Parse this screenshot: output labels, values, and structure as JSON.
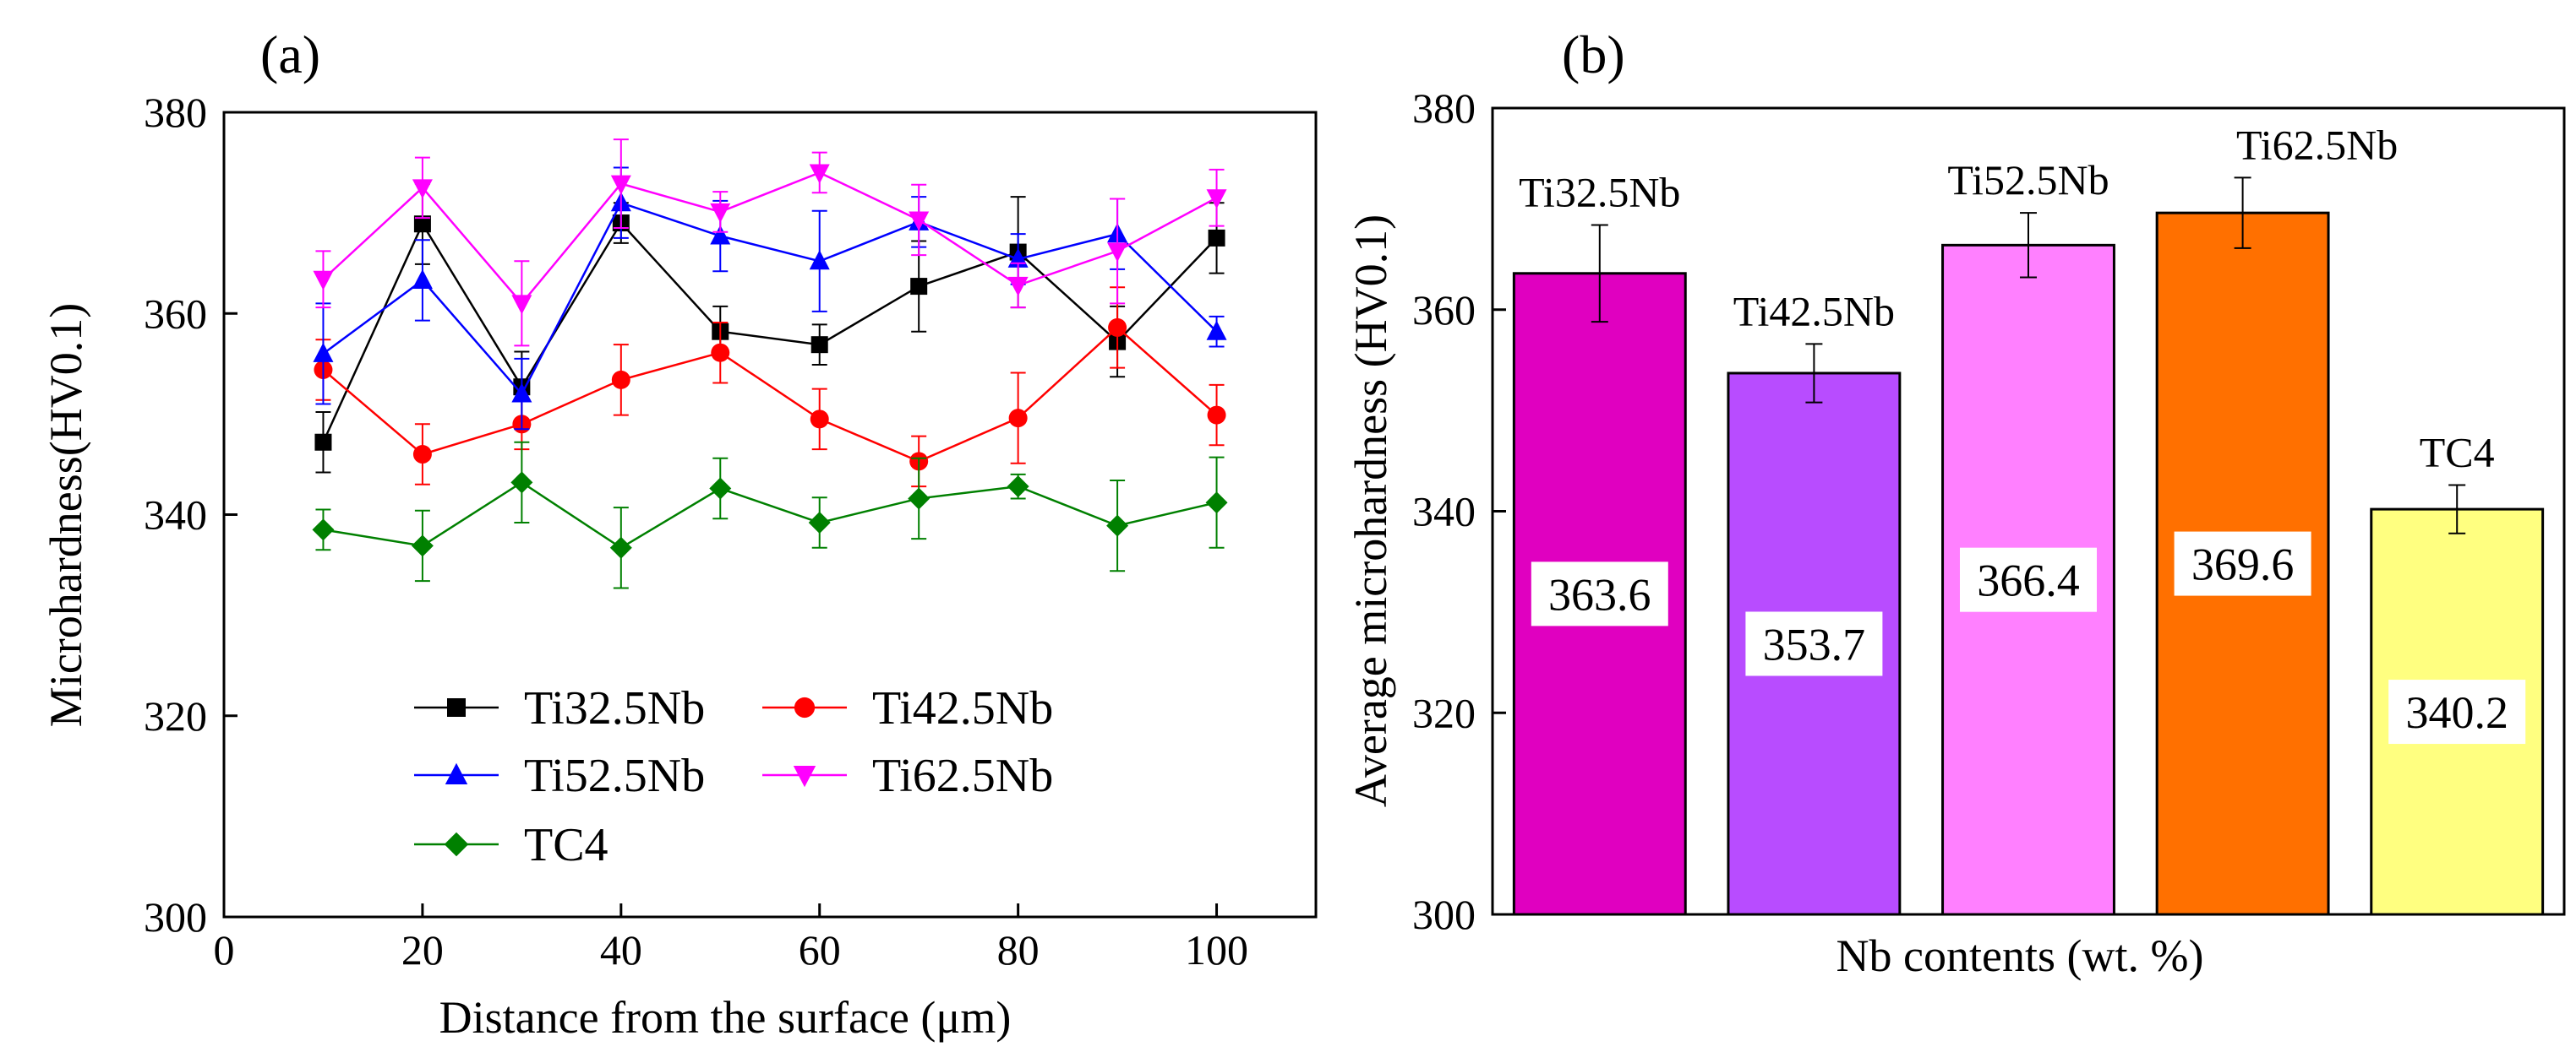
{
  "chart_data": [
    {
      "panel": "(a)",
      "type": "line",
      "xlabel": "Distance from the surface (μm)",
      "ylabel": "Microhardness(HV0.1)",
      "xlim": [
        0,
        110
      ],
      "ylim": [
        300,
        380
      ],
      "xticks": [
        0,
        20,
        40,
        60,
        80,
        100
      ],
      "yticks": [
        300,
        320,
        340,
        360,
        380
      ],
      "x": [
        10,
        20,
        30,
        40,
        50,
        60,
        70,
        80,
        90,
        100
      ],
      "legend_position": "bottom-left",
      "series": [
        {
          "name": "Ti32.5Nb",
          "color": "#000000",
          "marker": "square",
          "values": [
            347.2,
            368.9,
            352.7,
            369.0,
            358.2,
            356.9,
            362.7,
            366.1,
            357.2,
            367.5
          ],
          "errors": [
            3.0,
            4.0,
            3.5,
            2.0,
            2.5,
            2.0,
            4.5,
            5.5,
            3.5,
            3.5
          ]
        },
        {
          "name": "Ti42.5Nb",
          "color": "#ff0000",
          "marker": "circle",
          "values": [
            354.4,
            346.0,
            349.0,
            353.4,
            356.1,
            349.5,
            345.3,
            349.6,
            358.6,
            349.9
          ],
          "errors": [
            3.0,
            3.0,
            2.5,
            3.5,
            3.0,
            3.0,
            2.5,
            4.5,
            4.0,
            3.0
          ]
        },
        {
          "name": "Ti52.5Nb",
          "color": "#0000ff",
          "marker": "triangle-up",
          "values": [
            356.0,
            363.3,
            352.0,
            371.0,
            367.7,
            365.2,
            369.1,
            365.4,
            367.9,
            358.2
          ],
          "errors": [
            5.0,
            4.0,
            3.5,
            3.5,
            3.5,
            5.0,
            2.5,
            2.5,
            3.5,
            1.5
          ]
        },
        {
          "name": "Ti62.5Nb",
          "color": "#ff00ff",
          "marker": "triangle-down",
          "values": [
            363.4,
            372.5,
            361.0,
            372.9,
            370.1,
            374.0,
            369.3,
            362.8,
            366.2,
            371.5
          ],
          "errors": [
            2.8,
            3.0,
            4.2,
            4.4,
            2.0,
            2.0,
            3.5,
            2.2,
            5.2,
            2.8
          ]
        },
        {
          "name": "TC4",
          "color": "#008000",
          "marker": "diamond",
          "values": [
            338.5,
            336.9,
            343.2,
            336.7,
            342.6,
            339.2,
            341.6,
            342.8,
            338.9,
            341.2
          ],
          "errors": [
            2.0,
            3.5,
            4.0,
            4.0,
            3.0,
            2.5,
            4.0,
            1.2,
            4.5,
            4.5
          ]
        }
      ]
    },
    {
      "panel": "(b)",
      "type": "bar",
      "xlabel": "Nb contents (wt. %)",
      "ylabel": "Average microhardness (HV0.1)",
      "ylim": [
        300,
        380
      ],
      "yticks": [
        300,
        320,
        340,
        360,
        380
      ],
      "categories": [
        "Ti32.5Nb",
        "Ti42.5Nb",
        "Ti52.5Nb",
        "Ti62.5Nb",
        "TC4"
      ],
      "values": [
        363.6,
        353.7,
        366.4,
        369.6,
        340.2
      ],
      "value_labels": [
        "363.6",
        "353.7",
        "366.4",
        "369.6",
        "340.2"
      ],
      "errors": [
        4.8,
        2.9,
        3.2,
        3.5,
        2.4
      ],
      "colors": [
        "#e000c0",
        "#b84cff",
        "#ff80ff",
        "#ff7000",
        "#ffff80"
      ]
    }
  ]
}
